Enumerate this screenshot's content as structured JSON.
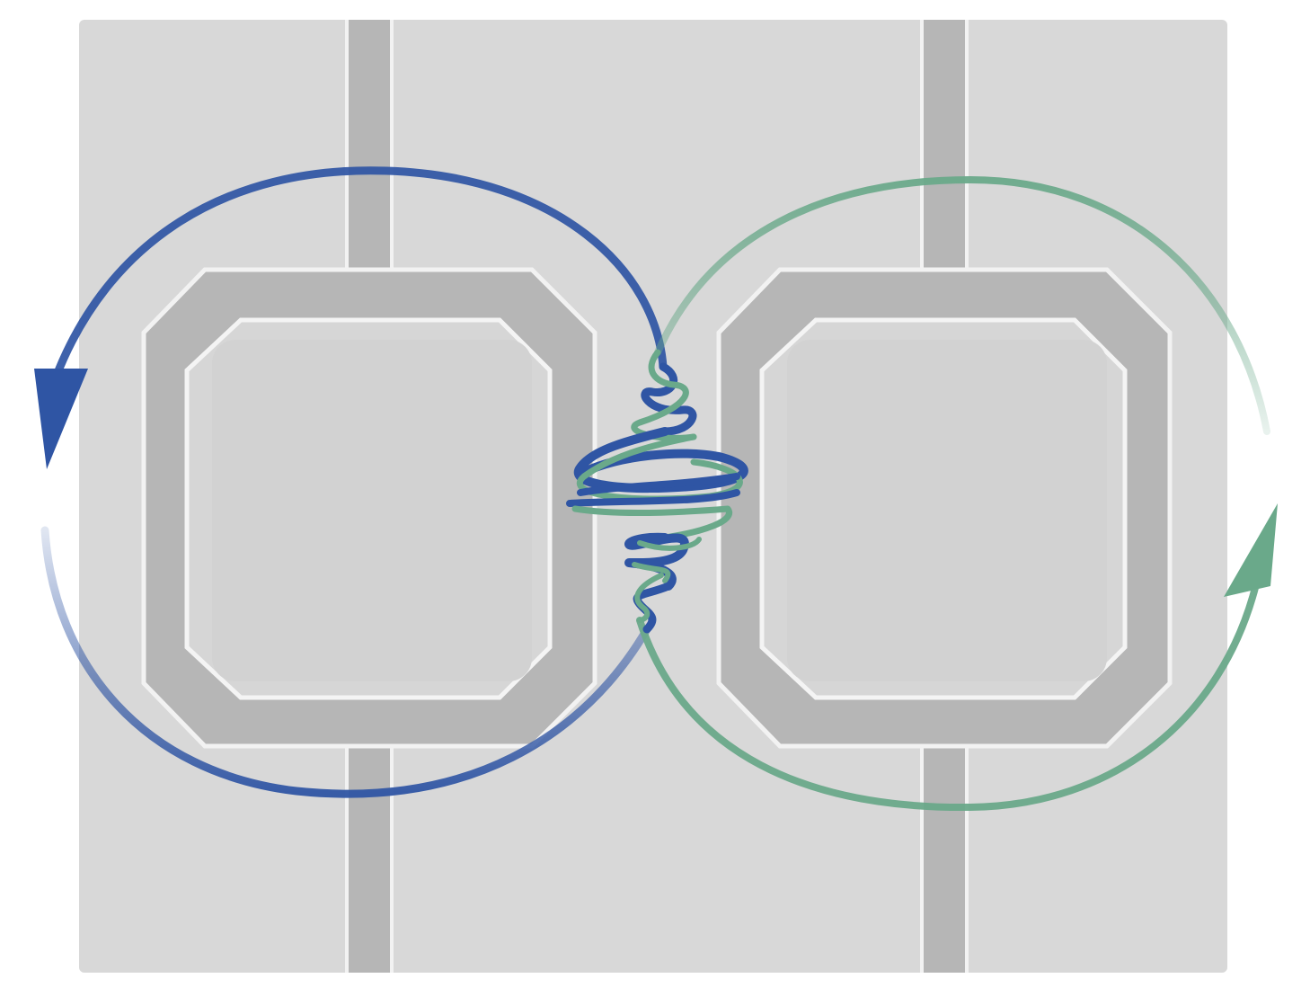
{
  "diagram": {
    "kind": "two coupled ring resonators with circulating modes",
    "background": "#ffffff",
    "substrate_color": "#dcdcdc",
    "waveguide_color": "#b4b4b4",
    "highlight_color": "#ededed",
    "resonators": [
      {
        "id": "left",
        "loop_color": "#2f55a4",
        "direction": "counter-clockwise"
      },
      {
        "id": "right",
        "loop_color": "#6aa98a",
        "direction": "clockwise"
      }
    ],
    "coupling_region": {
      "style": "interleaved twisted strands",
      "colors": [
        "#2f55a4",
        "#6aa98a"
      ]
    },
    "icons": [
      "arrowhead-icon",
      "arrowhead-icon"
    ]
  }
}
